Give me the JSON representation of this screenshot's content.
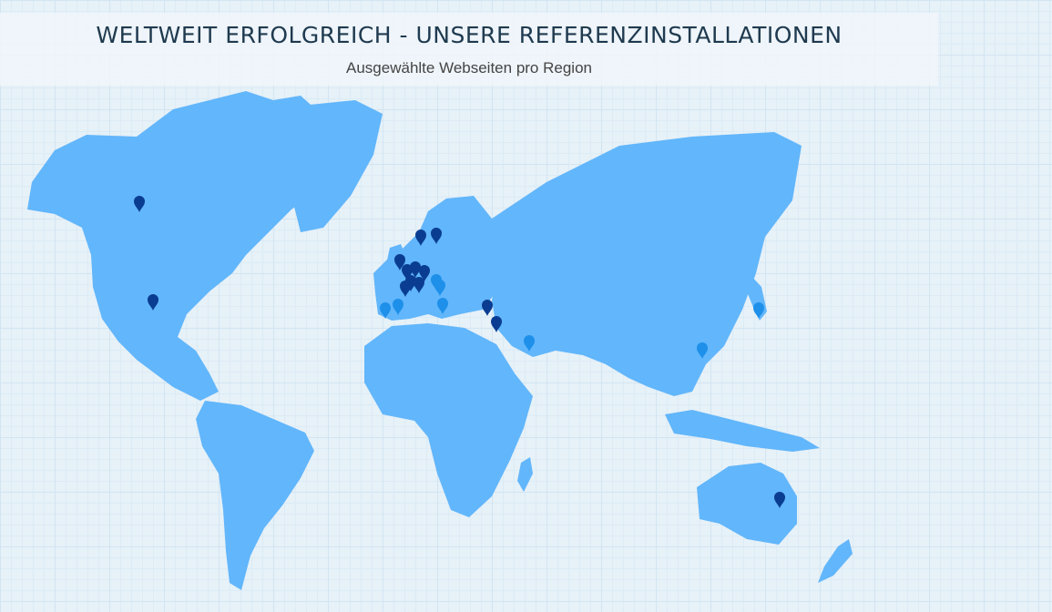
{
  "header": {
    "title": "WELTWEIT ERFOLGREICH - UNSERE REFERENZINSTALLATIONEN",
    "subtitle": "Ausgewählte Webseiten pro Region"
  },
  "colors": {
    "land": "#62b6fb",
    "marker_dark": "#0a3d91",
    "marker_light": "#1e90ea",
    "background": "#e6f1f8"
  },
  "markers": [
    {
      "region": "north-america",
      "tone": "dark"
    },
    {
      "region": "north-america",
      "tone": "dark"
    },
    {
      "region": "europe",
      "tone": "dark"
    },
    {
      "region": "europe",
      "tone": "dark"
    },
    {
      "region": "europe",
      "tone": "dark"
    },
    {
      "region": "europe",
      "tone": "dark"
    },
    {
      "region": "europe",
      "tone": "dark"
    },
    {
      "region": "europe",
      "tone": "dark"
    },
    {
      "region": "europe",
      "tone": "dark"
    },
    {
      "region": "europe",
      "tone": "dark"
    },
    {
      "region": "europe",
      "tone": "dark"
    },
    {
      "region": "europe",
      "tone": "light"
    },
    {
      "region": "europe",
      "tone": "light"
    },
    {
      "region": "europe",
      "tone": "light"
    },
    {
      "region": "europe",
      "tone": "light"
    },
    {
      "region": "europe",
      "tone": "light"
    },
    {
      "region": "middle-east",
      "tone": "dark"
    },
    {
      "region": "middle-east",
      "tone": "dark"
    },
    {
      "region": "middle-east",
      "tone": "light"
    },
    {
      "region": "asia",
      "tone": "light"
    },
    {
      "region": "asia",
      "tone": "light"
    },
    {
      "region": "oceania",
      "tone": "dark"
    }
  ]
}
